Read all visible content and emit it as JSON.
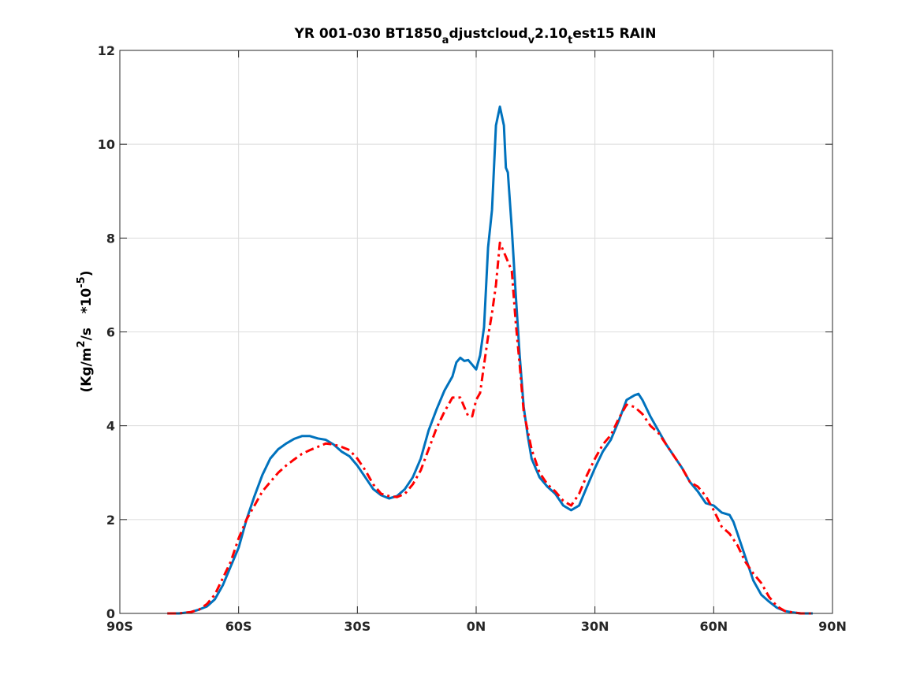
{
  "chart_data": {
    "type": "line",
    "title_parts": {
      "t1": "YR 001-030 BT1850",
      "s1": "a",
      "t2": "djustcloud",
      "s2": "v",
      "t3": "2.10",
      "s3": "t",
      "t4": "est15 RAIN"
    },
    "ylabel_parts": {
      "a": "(Kg/m",
      "b": "2",
      "c": "/s   *10",
      "d": "-5",
      "e": ")"
    },
    "xlim": [
      -90,
      90
    ],
    "ylim": [
      0,
      12
    ],
    "grid": true,
    "x_ticks": [
      {
        "value": -90,
        "label": "90S"
      },
      {
        "value": -60,
        "label": "60S"
      },
      {
        "value": -30,
        "label": "30S"
      },
      {
        "value": 0,
        "label": "0N"
      },
      {
        "value": 30,
        "label": "30N"
      },
      {
        "value": 60,
        "label": "60N"
      },
      {
        "value": 90,
        "label": "90N"
      }
    ],
    "y_ticks": [
      {
        "value": 0,
        "label": "0"
      },
      {
        "value": 2,
        "label": "2"
      },
      {
        "value": 4,
        "label": "4"
      },
      {
        "value": 6,
        "label": "6"
      },
      {
        "value": 8,
        "label": "8"
      },
      {
        "value": 10,
        "label": "10"
      },
      {
        "value": 12,
        "label": "12"
      }
    ],
    "series": [
      {
        "color": "#0072BD",
        "style": "solid",
        "points": [
          [
            -78,
            0.0
          ],
          [
            -75,
            0.0
          ],
          [
            -72,
            0.03
          ],
          [
            -70,
            0.08
          ],
          [
            -68,
            0.15
          ],
          [
            -66,
            0.3
          ],
          [
            -64,
            0.6
          ],
          [
            -62,
            1.0
          ],
          [
            -60,
            1.4
          ],
          [
            -58,
            2.0
          ],
          [
            -56,
            2.5
          ],
          [
            -54,
            2.95
          ],
          [
            -52,
            3.3
          ],
          [
            -50,
            3.5
          ],
          [
            -48,
            3.62
          ],
          [
            -46,
            3.72
          ],
          [
            -44,
            3.78
          ],
          [
            -42,
            3.78
          ],
          [
            -40,
            3.73
          ],
          [
            -38,
            3.7
          ],
          [
            -36,
            3.6
          ],
          [
            -34,
            3.45
          ],
          [
            -32,
            3.35
          ],
          [
            -30,
            3.15
          ],
          [
            -28,
            2.9
          ],
          [
            -26,
            2.65
          ],
          [
            -24,
            2.52
          ],
          [
            -22,
            2.45
          ],
          [
            -20,
            2.5
          ],
          [
            -18,
            2.65
          ],
          [
            -16,
            2.9
          ],
          [
            -14,
            3.3
          ],
          [
            -12,
            3.9
          ],
          [
            -10,
            4.35
          ],
          [
            -8,
            4.75
          ],
          [
            -6,
            5.05
          ],
          [
            -5,
            5.35
          ],
          [
            -4,
            5.45
          ],
          [
            -3,
            5.38
          ],
          [
            -2,
            5.4
          ],
          [
            -1,
            5.3
          ],
          [
            0,
            5.2
          ],
          [
            1,
            5.5
          ],
          [
            2,
            6.1
          ],
          [
            3,
            7.8
          ],
          [
            4,
            8.6
          ],
          [
            4.5,
            9.5
          ],
          [
            5,
            10.4
          ],
          [
            6,
            10.8
          ],
          [
            7,
            10.4
          ],
          [
            7.5,
            9.5
          ],
          [
            8,
            9.4
          ],
          [
            9,
            8.2
          ],
          [
            10,
            6.8
          ],
          [
            11,
            5.5
          ],
          [
            12,
            4.4
          ],
          [
            13,
            3.8
          ],
          [
            14,
            3.3
          ],
          [
            16,
            2.9
          ],
          [
            18,
            2.7
          ],
          [
            20,
            2.55
          ],
          [
            22,
            2.3
          ],
          [
            24,
            2.2
          ],
          [
            26,
            2.3
          ],
          [
            28,
            2.7
          ],
          [
            30,
            3.1
          ],
          [
            32,
            3.45
          ],
          [
            34,
            3.7
          ],
          [
            36,
            4.1
          ],
          [
            38,
            4.55
          ],
          [
            40,
            4.65
          ],
          [
            41,
            4.68
          ],
          [
            42,
            4.55
          ],
          [
            44,
            4.2
          ],
          [
            46,
            3.9
          ],
          [
            48,
            3.6
          ],
          [
            50,
            3.35
          ],
          [
            52,
            3.1
          ],
          [
            54,
            2.8
          ],
          [
            56,
            2.6
          ],
          [
            58,
            2.35
          ],
          [
            60,
            2.3
          ],
          [
            62,
            2.15
          ],
          [
            64,
            2.1
          ],
          [
            65,
            1.95
          ],
          [
            66,
            1.7
          ],
          [
            68,
            1.2
          ],
          [
            70,
            0.7
          ],
          [
            72,
            0.4
          ],
          [
            74,
            0.25
          ],
          [
            76,
            0.12
          ],
          [
            78,
            0.05
          ],
          [
            80,
            0.02
          ],
          [
            82,
            0.0
          ],
          [
            85,
            0.0
          ]
        ]
      },
      {
        "color": "#FF0000",
        "style": "dashdot",
        "points": [
          [
            -78,
            0.0
          ],
          [
            -75,
            0.0
          ],
          [
            -72,
            0.03
          ],
          [
            -70,
            0.08
          ],
          [
            -68,
            0.2
          ],
          [
            -66,
            0.4
          ],
          [
            -64,
            0.75
          ],
          [
            -62,
            1.1
          ],
          [
            -60,
            1.6
          ],
          [
            -58,
            2.0
          ],
          [
            -56,
            2.3
          ],
          [
            -54,
            2.6
          ],
          [
            -52,
            2.8
          ],
          [
            -50,
            3.0
          ],
          [
            -48,
            3.15
          ],
          [
            -46,
            3.28
          ],
          [
            -44,
            3.4
          ],
          [
            -42,
            3.48
          ],
          [
            -40,
            3.55
          ],
          [
            -38,
            3.62
          ],
          [
            -36,
            3.6
          ],
          [
            -34,
            3.55
          ],
          [
            -32,
            3.48
          ],
          [
            -30,
            3.3
          ],
          [
            -28,
            3.05
          ],
          [
            -26,
            2.75
          ],
          [
            -24,
            2.55
          ],
          [
            -22,
            2.5
          ],
          [
            -20,
            2.48
          ],
          [
            -18,
            2.55
          ],
          [
            -16,
            2.75
          ],
          [
            -14,
            3.05
          ],
          [
            -12,
            3.5
          ],
          [
            -10,
            3.95
          ],
          [
            -8,
            4.3
          ],
          [
            -6,
            4.6
          ],
          [
            -4,
            4.6
          ],
          [
            -3,
            4.4
          ],
          [
            -2,
            4.2
          ],
          [
            -1,
            4.2
          ],
          [
            0,
            4.55
          ],
          [
            1,
            4.7
          ],
          [
            2,
            5.3
          ],
          [
            3,
            5.9
          ],
          [
            4,
            6.4
          ],
          [
            5,
            7.0
          ],
          [
            6,
            7.9
          ],
          [
            7,
            7.7
          ],
          [
            8,
            7.5
          ],
          [
            9,
            7.3
          ],
          [
            10,
            6.2
          ],
          [
            11,
            5.3
          ],
          [
            12,
            4.3
          ],
          [
            13,
            3.9
          ],
          [
            14,
            3.5
          ],
          [
            16,
            3.0
          ],
          [
            18,
            2.75
          ],
          [
            20,
            2.6
          ],
          [
            22,
            2.4
          ],
          [
            24,
            2.3
          ],
          [
            26,
            2.55
          ],
          [
            28,
            2.95
          ],
          [
            30,
            3.3
          ],
          [
            32,
            3.6
          ],
          [
            34,
            3.8
          ],
          [
            36,
            4.15
          ],
          [
            38,
            4.45
          ],
          [
            40,
            4.4
          ],
          [
            42,
            4.25
          ],
          [
            44,
            4.0
          ],
          [
            46,
            3.85
          ],
          [
            48,
            3.6
          ],
          [
            50,
            3.35
          ],
          [
            52,
            3.1
          ],
          [
            54,
            2.8
          ],
          [
            56,
            2.7
          ],
          [
            58,
            2.5
          ],
          [
            60,
            2.2
          ],
          [
            62,
            1.85
          ],
          [
            64,
            1.7
          ],
          [
            66,
            1.45
          ],
          [
            68,
            1.1
          ],
          [
            70,
            0.85
          ],
          [
            72,
            0.65
          ],
          [
            74,
            0.35
          ],
          [
            76,
            0.15
          ],
          [
            78,
            0.05
          ],
          [
            80,
            0.02
          ],
          [
            82,
            0.0
          ],
          [
            85,
            0.0
          ]
        ]
      }
    ]
  }
}
